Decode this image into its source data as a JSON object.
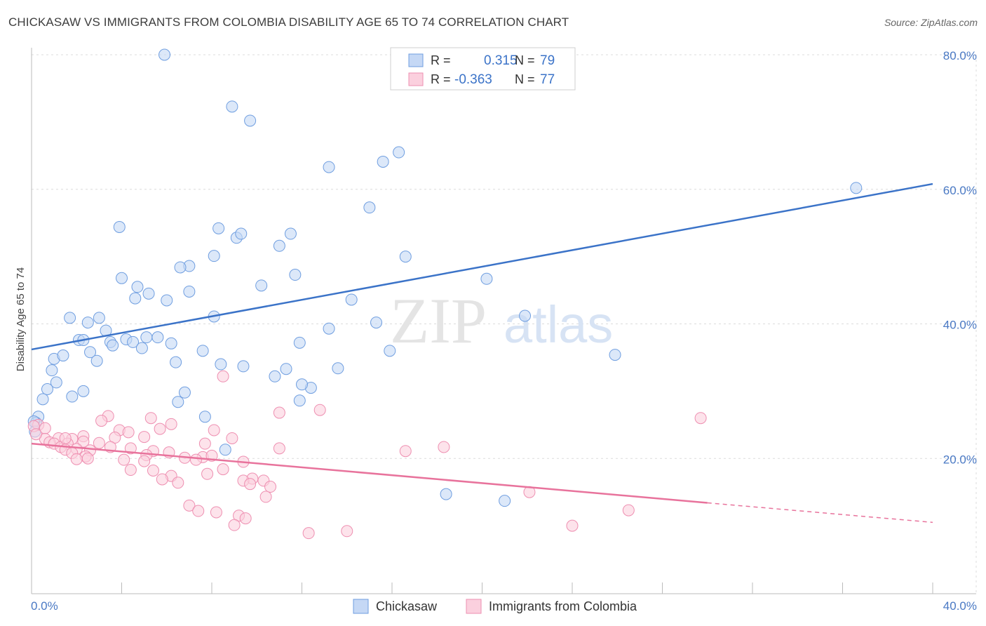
{
  "title": "CHICKASAW VS IMMIGRANTS FROM COLOMBIA DISABILITY AGE 65 TO 74 CORRELATION CHART",
  "source": "Source: ZipAtlas.com",
  "watermark": {
    "zip": "ZIP",
    "atlas": "atlas"
  },
  "legend": {
    "r_label": "R =",
    "n_label": "N =",
    "series": [
      {
        "r": "0.315",
        "n": "79",
        "color": "#6f9ee0",
        "fill": "#c5d8f5"
      },
      {
        "r": "-0.363",
        "n": "77",
        "color": "#ee8fb1",
        "fill": "#fbd0de"
      }
    ]
  },
  "bottom_legend": [
    "Chickasaw",
    "Immigrants from Colombia"
  ],
  "chart_data": {
    "type": "scatter",
    "title": "CHICKASAW VS IMMIGRANTS FROM COLOMBIA DISABILITY AGE 65 TO 74 CORRELATION CHART",
    "xlabel": "",
    "ylabel": "Disability Age 65 to 74",
    "xlim": [
      0,
      40
    ],
    "ylim": [
      0,
      80
    ],
    "x_tick_labels": [
      "0.0%",
      "40.0%"
    ],
    "y_tick_labels": [
      "20.0%",
      "40.0%",
      "60.0%",
      "80.0%"
    ],
    "y_ticks": [
      20,
      40,
      60,
      80
    ],
    "grid": true,
    "series": [
      {
        "name": "Chickasaw",
        "color": "#3b73c8",
        "points": [
          [
            5.9,
            80.0
          ],
          [
            8.9,
            72.3
          ],
          [
            9.7,
            70.2
          ],
          [
            13.2,
            63.3
          ],
          [
            15.6,
            64.1
          ],
          [
            16.3,
            65.5
          ],
          [
            36.6,
            60.2
          ],
          [
            15.0,
            57.3
          ],
          [
            3.9,
            54.4
          ],
          [
            8.3,
            54.2
          ],
          [
            9.1,
            52.8
          ],
          [
            9.3,
            53.4
          ],
          [
            11.0,
            51.6
          ],
          [
            11.5,
            53.4
          ],
          [
            8.1,
            50.1
          ],
          [
            7.0,
            48.6
          ],
          [
            6.6,
            48.4
          ],
          [
            11.7,
            47.3
          ],
          [
            16.6,
            50.0
          ],
          [
            4.0,
            46.8
          ],
          [
            4.7,
            45.5
          ],
          [
            10.2,
            45.7
          ],
          [
            7.0,
            44.8
          ],
          [
            5.2,
            44.5
          ],
          [
            4.6,
            43.8
          ],
          [
            6.0,
            43.5
          ],
          [
            14.2,
            43.6
          ],
          [
            20.2,
            46.7
          ],
          [
            1.7,
            40.9
          ],
          [
            2.5,
            40.2
          ],
          [
            3.0,
            40.9
          ],
          [
            3.3,
            39.0
          ],
          [
            8.1,
            41.1
          ],
          [
            13.2,
            39.3
          ],
          [
            15.3,
            40.2
          ],
          [
            21.9,
            41.2
          ],
          [
            2.1,
            37.6
          ],
          [
            2.3,
            37.6
          ],
          [
            3.5,
            37.3
          ],
          [
            3.6,
            36.8
          ],
          [
            4.2,
            37.7
          ],
          [
            4.5,
            37.3
          ],
          [
            5.1,
            38.0
          ],
          [
            5.6,
            38.0
          ],
          [
            6.2,
            37.1
          ],
          [
            4.9,
            36.4
          ],
          [
            2.6,
            35.8
          ],
          [
            7.6,
            36.0
          ],
          [
            11.9,
            37.2
          ],
          [
            15.9,
            36.0
          ],
          [
            25.9,
            35.4
          ],
          [
            1.0,
            34.8
          ],
          [
            1.4,
            35.3
          ],
          [
            2.9,
            34.5
          ],
          [
            6.4,
            34.3
          ],
          [
            8.4,
            34.0
          ],
          [
            9.4,
            33.7
          ],
          [
            11.3,
            33.3
          ],
          [
            13.6,
            33.4
          ],
          [
            0.9,
            33.1
          ],
          [
            10.8,
            32.2
          ],
          [
            0.7,
            30.3
          ],
          [
            1.1,
            31.3
          ],
          [
            2.3,
            30.0
          ],
          [
            12.4,
            30.5
          ],
          [
            12.0,
            31.0
          ],
          [
            6.8,
            29.8
          ],
          [
            1.8,
            29.2
          ],
          [
            0.5,
            28.8
          ],
          [
            6.5,
            28.4
          ],
          [
            11.9,
            28.6
          ],
          [
            0.3,
            26.2
          ],
          [
            7.7,
            26.2
          ],
          [
            0.2,
            25.3
          ],
          [
            8.6,
            21.3
          ],
          [
            18.4,
            14.7
          ],
          [
            21.0,
            13.7
          ],
          [
            0.1,
            25.5
          ],
          [
            0.15,
            24.0
          ]
        ],
        "trend": [
          [
            0,
            36.2
          ],
          [
            40,
            60.8
          ]
        ]
      },
      {
        "name": "Immigrants from Colombia",
        "color": "#e8739c",
        "points": [
          [
            8.5,
            32.2
          ],
          [
            12.8,
            27.2
          ],
          [
            11.0,
            26.8
          ],
          [
            29.7,
            26.0
          ],
          [
            3.4,
            26.3
          ],
          [
            5.3,
            26.0
          ],
          [
            3.1,
            25.6
          ],
          [
            6.2,
            25.1
          ],
          [
            0.3,
            25.0
          ],
          [
            0.6,
            24.5
          ],
          [
            3.9,
            24.2
          ],
          [
            5.7,
            24.4
          ],
          [
            8.1,
            24.2
          ],
          [
            4.3,
            23.9
          ],
          [
            2.3,
            23.3
          ],
          [
            1.8,
            22.9
          ],
          [
            0.6,
            22.9
          ],
          [
            1.2,
            23.0
          ],
          [
            3.7,
            23.1
          ],
          [
            5.0,
            23.2
          ],
          [
            8.9,
            23.0
          ],
          [
            0.8,
            22.4
          ],
          [
            2.3,
            22.5
          ],
          [
            3.0,
            22.3
          ],
          [
            1.0,
            22.2
          ],
          [
            1.6,
            22.2
          ],
          [
            1.3,
            21.7
          ],
          [
            1.5,
            21.3
          ],
          [
            3.5,
            21.7
          ],
          [
            7.7,
            22.2
          ],
          [
            11.0,
            21.5
          ],
          [
            18.3,
            21.7
          ],
          [
            16.6,
            21.1
          ],
          [
            4.4,
            21.5
          ],
          [
            5.4,
            21.1
          ],
          [
            2.0,
            21.4
          ],
          [
            2.6,
            21.2
          ],
          [
            1.8,
            20.8
          ],
          [
            2.4,
            20.3
          ],
          [
            6.1,
            20.9
          ],
          [
            6.8,
            20.1
          ],
          [
            7.6,
            20.2
          ],
          [
            8.0,
            20.4
          ],
          [
            7.3,
            19.8
          ],
          [
            5.1,
            20.5
          ],
          [
            2.5,
            20.0
          ],
          [
            2.0,
            19.9
          ],
          [
            4.1,
            19.8
          ],
          [
            5.0,
            19.6
          ],
          [
            9.4,
            19.5
          ],
          [
            4.4,
            18.3
          ],
          [
            5.4,
            18.2
          ],
          [
            8.5,
            18.4
          ],
          [
            7.8,
            17.7
          ],
          [
            6.2,
            17.4
          ],
          [
            5.8,
            16.9
          ],
          [
            9.8,
            17.0
          ],
          [
            10.3,
            16.7
          ],
          [
            6.5,
            16.4
          ],
          [
            9.4,
            16.7
          ],
          [
            9.7,
            16.2
          ],
          [
            10.6,
            15.8
          ],
          [
            10.4,
            14.3
          ],
          [
            22.1,
            15.0
          ],
          [
            7.0,
            13.0
          ],
          [
            7.4,
            12.2
          ],
          [
            8.2,
            12.0
          ],
          [
            9.2,
            11.5
          ],
          [
            9.5,
            11.1
          ],
          [
            26.5,
            12.3
          ],
          [
            9.0,
            10.1
          ],
          [
            24.0,
            10.0
          ],
          [
            12.3,
            8.9
          ],
          [
            14.0,
            9.2
          ],
          [
            0.1,
            24.8
          ],
          [
            0.2,
            23.6
          ],
          [
            1.5,
            23.0
          ]
        ],
        "trend": [
          [
            0,
            22.2
          ],
          [
            30,
            13.4
          ]
        ],
        "trend_dashed": [
          [
            30,
            13.4
          ],
          [
            40,
            10.5
          ]
        ]
      }
    ]
  }
}
